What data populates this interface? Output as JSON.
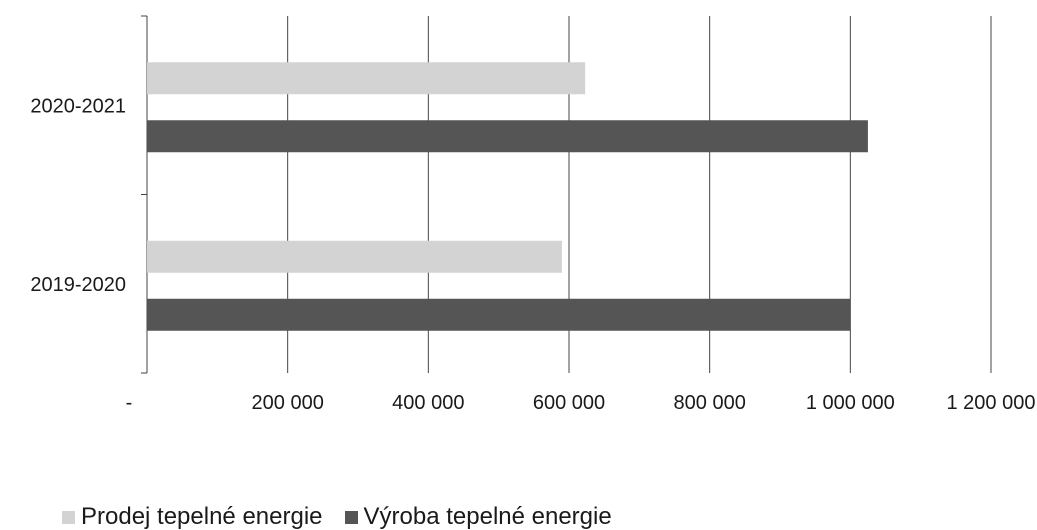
{
  "chart_data": {
    "type": "bar",
    "orientation": "horizontal",
    "categories": [
      "2020-2021",
      "2019-2020"
    ],
    "series": [
      {
        "name": "Prodej tepelné energie",
        "color": "#d3d3d3",
        "values": [
          623000,
          590000
        ]
      },
      {
        "name": "Výroba tepelné energie",
        "color": "#555555",
        "values": [
          1025000,
          1000000
        ]
      }
    ],
    "xlim": [
      0,
      1200000
    ],
    "xticks": [
      0,
      200000,
      400000,
      600000,
      800000,
      1000000,
      1200000
    ],
    "xtick_labels": [
      "-",
      "200 000",
      "400 000",
      "600 000",
      "800 000",
      "1 000 000",
      "1 200 000"
    ],
    "grid": "vertical",
    "legend_position": "bottom"
  }
}
